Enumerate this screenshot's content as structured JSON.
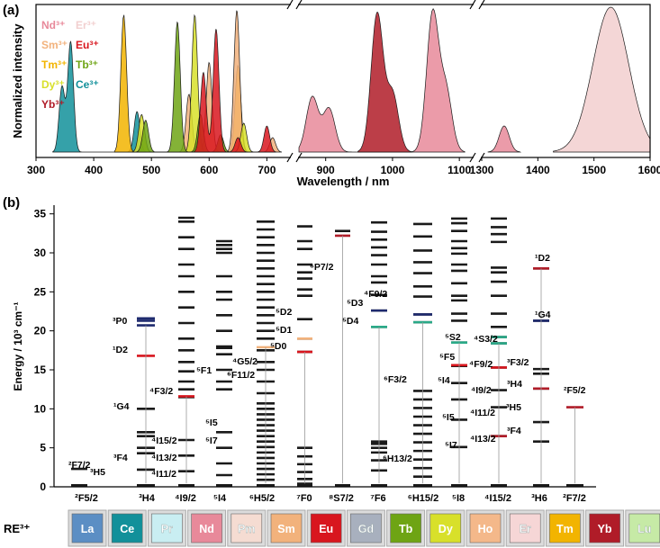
{
  "panel_a": {
    "letter": "(a)",
    "ylabel": "Normalized intensity",
    "xlabel": "Wavelength / nm",
    "xticks": [
      "300",
      "400",
      "500",
      "600",
      "700",
      "900",
      "1000",
      "1100",
      "1300",
      "1400",
      "1500",
      "1600"
    ],
    "legend": [
      {
        "label": "Nd³⁺",
        "color": "#e8899a"
      },
      {
        "label": "Sm³⁺",
        "color": "#f2b27c"
      },
      {
        "label": "Tm³⁺",
        "color": "#f2b400"
      },
      {
        "label": "Dy³⁺",
        "color": "#d8e02a"
      },
      {
        "label": "Yb³⁺",
        "color": "#b01c28"
      },
      {
        "label": "Er³⁺",
        "color": "#f2cfcf"
      },
      {
        "label": "Eu³⁺",
        "color": "#d8161e"
      },
      {
        "label": "Tb³⁺",
        "color": "#6ea414"
      },
      {
        "label": "Ce³⁺",
        "color": "#12909a"
      }
    ]
  },
  "panel_b": {
    "letter": "(b)",
    "ylabel": "Energy / 10³ cm⁻¹",
    "yticks": [
      "0",
      "5",
      "10",
      "15",
      "20",
      "25",
      "30",
      "35"
    ],
    "re_label": "RE³⁺",
    "ground_states": [
      "²F5/2",
      "³H4",
      "⁴I9/2",
      "⁵I4",
      "⁶H5/2",
      "⁷F0",
      "⁸S7/2",
      "⁷F6",
      "⁶H15/2",
      "⁵I8",
      "⁴I15/2",
      "³H6",
      "²F7/2"
    ],
    "level_labels": [
      "²F7/2",
      "³H5",
      "³F4",
      "¹G4",
      "¹D2",
      "³P0",
      "⁴I11/2",
      "⁴I13/2",
      "⁴I15/2",
      "⁴F3/2",
      "⁵I7",
      "⁵I5",
      "⁵F1",
      "⁶F11/2",
      "⁴G5/2",
      "⁵D0",
      "⁵D1",
      "⁵D2",
      "⁶P7/2",
      "⁵D4",
      "⁵D3",
      "⁶H13/2",
      "⁶F3/2",
      "⁴F9/2",
      "⁵I7",
      "⁵I5",
      "⁵I4",
      "⁵F5",
      "⁵S2",
      "⁴I13/2",
      "⁴I11/2",
      "⁴I9/2",
      "⁴F9/2",
      "⁴S3/2",
      "³F4",
      "³H5",
      "³H4",
      "³F3/2",
      "¹G4",
      "¹D2",
      "²F5/2"
    ],
    "elements": [
      {
        "name": "La",
        "color": "#5b8ec4"
      },
      {
        "name": "Ce",
        "color": "#12909a"
      },
      {
        "name": "Pr",
        "color": "#c9eef2"
      },
      {
        "name": "Nd",
        "color": "#e8899a"
      },
      {
        "name": "Pm",
        "color": "#f5dcd2"
      },
      {
        "name": "Sm",
        "color": "#f2b27c"
      },
      {
        "name": "Eu",
        "color": "#d8161e"
      },
      {
        "name": "Gd",
        "color": "#a8b0be"
      },
      {
        "name": "Tb",
        "color": "#6ea414"
      },
      {
        "name": "Dy",
        "color": "#d8e02a"
      },
      {
        "name": "Ho",
        "color": "#f4b88a"
      },
      {
        "name": "Er",
        "color": "#f6d6d6"
      },
      {
        "name": "Tm",
        "color": "#f2b400"
      },
      {
        "name": "Yb",
        "color": "#b01c28"
      },
      {
        "name": "Lu",
        "color": "#c6eaa6"
      }
    ]
  },
  "chart_data": [
    {
      "type": "area",
      "title": "",
      "xlabel": "Wavelength / nm",
      "ylabel": "Normalized intensity",
      "xlim": [
        300,
        1600
      ],
      "x_breaks": [
        [
          740,
          860
        ],
        [
          1120,
          1300
        ]
      ],
      "series": [
        {
          "name": "Ce³⁺",
          "color": "#12909a",
          "peaks": [
            [
              345,
              0.45
            ],
            [
              360,
              0.76
            ],
            [
              475,
              0.28
            ]
          ]
        },
        {
          "name": "Tm³⁺",
          "color": "#f2b400",
          "peaks": [
            [
              452,
              0.95
            ],
            [
              650,
              0.6
            ]
          ]
        },
        {
          "name": "Sm³⁺",
          "color": "#f2b27c",
          "peaks": [
            [
              565,
              0.4
            ],
            [
              600,
              0.62
            ],
            [
              648,
              0.98
            ],
            [
              710,
              0.1
            ]
          ]
        },
        {
          "name": "Dy³⁺",
          "color": "#d8e02a",
          "peaks": [
            [
              483,
              0.26
            ],
            [
              575,
              0.95
            ],
            [
              660,
              0.2
            ]
          ]
        },
        {
          "name": "Tb³⁺",
          "color": "#6ea414",
          "peaks": [
            [
              490,
              0.22
            ],
            [
              545,
              0.9
            ],
            [
              585,
              0.26
            ],
            [
              620,
              0.12
            ]
          ]
        },
        {
          "name": "Eu³⁺",
          "color": "#d8161e",
          "peaks": [
            [
              590,
              0.55
            ],
            [
              612,
              0.85
            ],
            [
              650,
              0.1
            ],
            [
              700,
              0.18
            ]
          ]
        },
        {
          "name": "Nd³⁺",
          "color": "#e8899a",
          "peaks": [
            [
              880,
              0.38
            ],
            [
              905,
              0.3
            ],
            [
              1060,
              0.95
            ],
            [
              1080,
              0.42
            ],
            [
              1340,
              0.18
            ]
          ]
        },
        {
          "name": "Yb³⁺",
          "color": "#b01c28",
          "peaks": [
            [
              977,
              0.95
            ],
            [
              1000,
              0.4
            ]
          ]
        },
        {
          "name": "Er³⁺",
          "color": "#f2cfcf",
          "peaks": [
            [
              1530,
              1.0
            ]
          ]
        }
      ]
    },
    {
      "type": "diagram",
      "title": "",
      "ylabel": "Energy / 10³ cm⁻¹",
      "ylim": [
        0,
        36
      ],
      "columns": [
        "Ce",
        "Pr",
        "Nd",
        "Pm",
        "Sm",
        "Eu",
        "Gd",
        "Tb",
        "Dy",
        "Ho",
        "Er",
        "Tm",
        "Yb"
      ]
    }
  ]
}
